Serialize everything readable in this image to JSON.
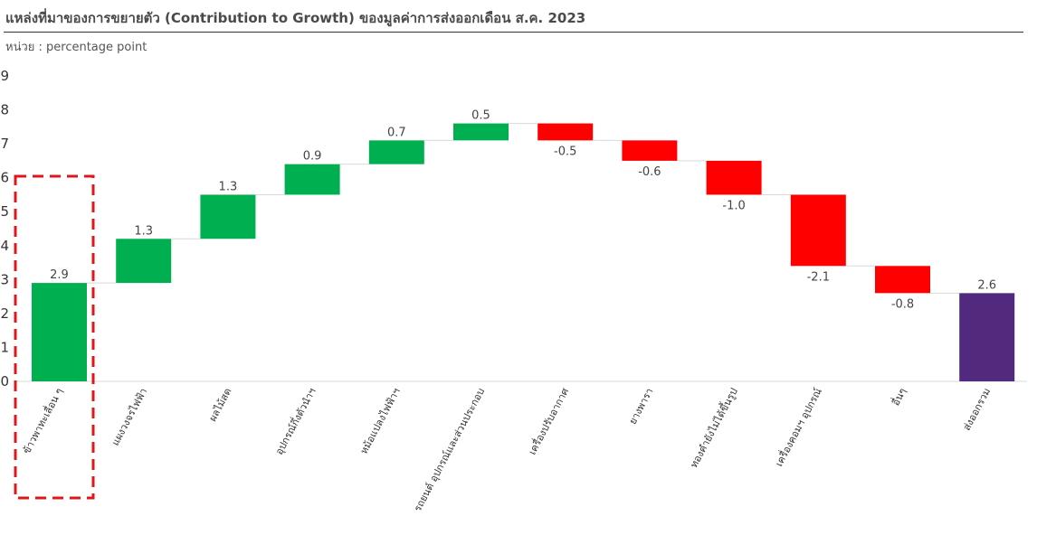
{
  "header": {
    "title": "แหล่งที่มาของการขยายตัว (Contribution to Growth) ของมูลค่าการส่งออกเดือน ส.ค. 2023",
    "unit": "หน่วย : percentage point"
  },
  "colors": {
    "increase": "#00b050",
    "decrease": "#ff0000",
    "total": "#512a7d",
    "connector": "#d9d9d9",
    "highlight_box": "#e0161b"
  },
  "chart_data": {
    "type": "bar",
    "subtype": "waterfall",
    "categories": [
      "ข้าวพาทะเลื่อน ๆ",
      "แผงวงจรไฟฟ้า",
      "ผลไม้สด",
      "อุปกรณ์กึ่งตัวนำฯ",
      "หม้อแปลงไฟฟ้าฯ",
      "รถยนต์ อุปกรณ์และส่วนประกอบ",
      "เครื่องปรับอากาศ",
      "ยางพารา",
      "ทองคำยังไม่ได้ขึ้นรูป",
      "เครื่องคอมฯ อุปกรณ์",
      "อื่นๆ",
      "ส่งออกรวม"
    ],
    "values": [
      2.9,
      1.3,
      1.3,
      0.9,
      0.7,
      0.5,
      -0.5,
      -0.6,
      -1.0,
      -2.1,
      -0.8,
      2.6
    ],
    "value_labels": [
      "2.9",
      "1.3",
      "1.3",
      "0.9",
      "0.7",
      "0.5",
      "-0.5",
      "-0.6",
      "-1.0",
      "-2.1",
      "-0.8",
      "2.6"
    ],
    "kinds": [
      "increase",
      "increase",
      "increase",
      "increase",
      "increase",
      "increase",
      "decrease",
      "decrease",
      "decrease",
      "decrease",
      "decrease",
      "total"
    ],
    "y_ticks": [
      "0",
      "1",
      "2",
      "3",
      "4",
      "5",
      "6",
      "7",
      "8",
      "9"
    ],
    "ylim": [
      0,
      9
    ],
    "highlighted_category": "ข้าวพาทะเลื่อน ๆ",
    "title": "แหล่งที่มาของการขยายตัว (Contribution to Growth) ของมูลค่าการส่งออกเดือน ส.ค. 2023",
    "ylabel": "หน่วย : percentage point",
    "grid": false,
    "legend": "none"
  }
}
